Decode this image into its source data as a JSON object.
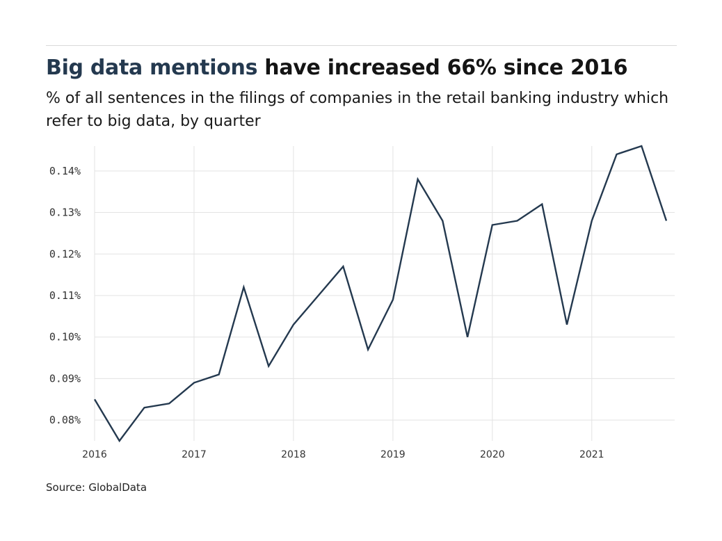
{
  "title": {
    "highlight": "Big data mentions",
    "rest": " have increased 66% since 2016"
  },
  "subtitle": "% of all sentences in the filings of companies in the retail banking industry which refer to big data, by quarter",
  "source": "Source: GlobalData",
  "colors": {
    "line": "#24394f",
    "grid": "#e3e3e3",
    "title_highlight": "#24394f"
  },
  "chart_data": {
    "type": "line",
    "title": "Big data mentions have increased 66% since 2016",
    "xlabel": "",
    "ylabel": "",
    "x_ticks": [
      "2016",
      "2017",
      "2018",
      "2019",
      "2020",
      "2021"
    ],
    "y_ticks": [
      "0.08%",
      "0.09%",
      "0.10%",
      "0.11%",
      "0.12%",
      "0.13%",
      "0.14%"
    ],
    "ylim": [
      0.075,
      0.146
    ],
    "xlim": [
      2016,
      2021.75
    ],
    "grid": true,
    "series": [
      {
        "x": [
          2016.0,
          2016.25,
          2016.5,
          2016.75,
          2017.0,
          2017.25,
          2017.5,
          2017.75,
          2018.0,
          2018.25,
          2018.5,
          2018.75,
          2019.0,
          2019.25,
          2019.5,
          2019.75,
          2020.0,
          2020.25,
          2020.5,
          2020.75,
          2021.0,
          2021.25,
          2021.5,
          2021.75
        ],
        "values": [
          0.085,
          0.075,
          0.083,
          0.084,
          0.089,
          0.091,
          0.112,
          0.093,
          0.103,
          0.11,
          0.117,
          0.097,
          0.109,
          0.138,
          0.128,
          0.1,
          0.127,
          0.128,
          0.132,
          0.103,
          0.128,
          0.144,
          0.146,
          0.128
        ]
      }
    ]
  }
}
